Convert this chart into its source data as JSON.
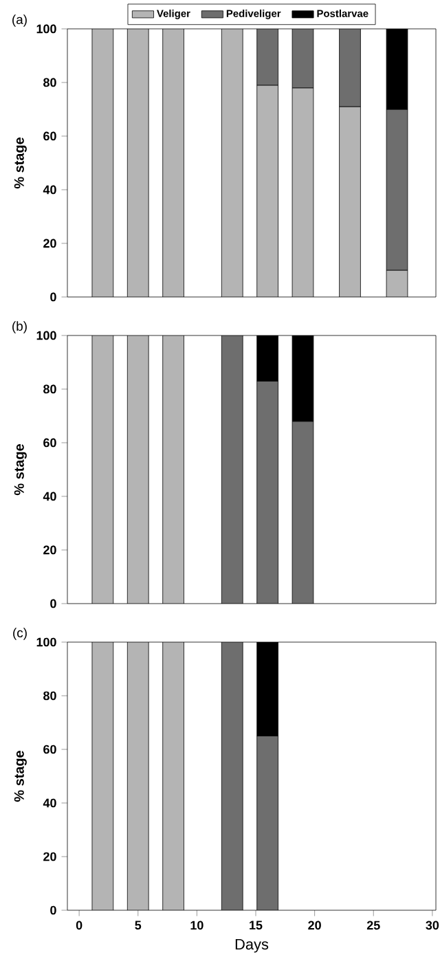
{
  "chart_data": [
    {
      "type": "bar",
      "title": "(a)",
      "ylabel": "% stage",
      "stacked": true,
      "legend": "top",
      "tick_labels": "y",
      "xlim": [
        -1,
        30.3
      ],
      "ylim": [
        0,
        100
      ],
      "yticks": [
        0,
        20,
        40,
        60,
        80,
        100
      ],
      "x": [
        2,
        5,
        8,
        13,
        16,
        19,
        23,
        27
      ],
      "series": [
        {
          "name": "Veliger",
          "color": "#b4b4b4",
          "values": [
            100,
            100,
            100,
            100,
            79,
            78,
            71,
            10
          ]
        },
        {
          "name": "Pediveliger",
          "color": "#6e6e6e",
          "values": [
            null,
            null,
            null,
            null,
            21,
            22,
            29,
            60
          ]
        },
        {
          "name": "Postlarvae",
          "color": "#000000",
          "values": [
            null,
            null,
            null,
            null,
            null,
            null,
            null,
            30
          ]
        }
      ]
    },
    {
      "type": "bar",
      "title": "(b)",
      "ylabel": "% stage",
      "stacked": true,
      "tick_labels": "y",
      "xlim": [
        -1,
        30.3
      ],
      "ylim": [
        0,
        100
      ],
      "yticks": [
        0,
        20,
        40,
        60,
        80,
        100
      ],
      "x": [
        2,
        5,
        8,
        13,
        16,
        19
      ],
      "series": [
        {
          "color": "#b4b4b4",
          "values": [
            100,
            100,
            100,
            null,
            null,
            null
          ]
        },
        {
          "color": "#6e6e6e",
          "values": [
            null,
            null,
            null,
            100,
            83,
            68
          ]
        },
        {
          "color": "#000000",
          "values": [
            null,
            null,
            null,
            null,
            17,
            32
          ]
        }
      ]
    },
    {
      "type": "bar",
      "title": "(c)",
      "xlabel": "Days",
      "ylabel": "% stage",
      "stacked": true,
      "xlim": [
        -1,
        30.3
      ],
      "ylim": [
        0,
        100
      ],
      "xticks": [
        0,
        5,
        10,
        15,
        20,
        25,
        30
      ],
      "yticks": [
        0,
        20,
        40,
        60,
        80,
        100
      ],
      "x": [
        2,
        5,
        8,
        13,
        16
      ],
      "series": [
        {
          "color": "#b4b4b4",
          "values": [
            100,
            100,
            100,
            null,
            null
          ]
        },
        {
          "color": "#6e6e6e",
          "values": [
            null,
            null,
            null,
            100,
            65
          ]
        },
        {
          "color": "#000000",
          "values": [
            null,
            null,
            null,
            null,
            35
          ]
        }
      ]
    }
  ]
}
